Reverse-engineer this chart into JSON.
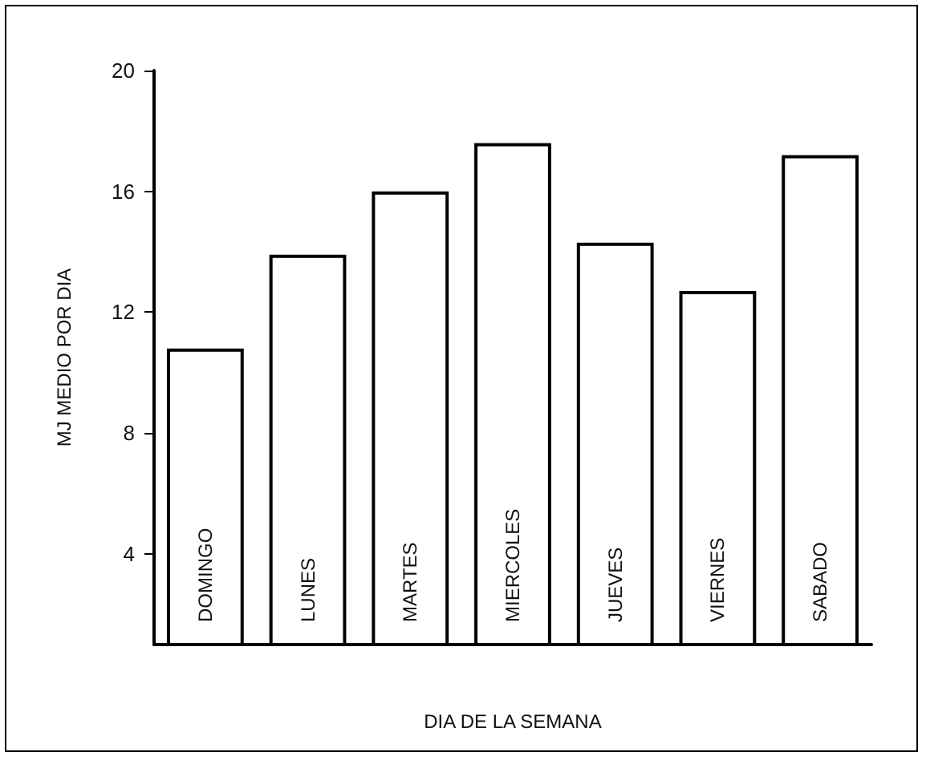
{
  "chart_data": {
    "type": "bar",
    "xlabel": "DIA DE LA SEMANA",
    "ylabel": "MJ MEDIO POR DIA",
    "categories": [
      "DOMINGO",
      "LUNES",
      "MARTES",
      "MIERCOLES",
      "JUEVES",
      "VIERNES",
      "SABADO"
    ],
    "values": [
      10.8,
      13.9,
      16.0,
      17.6,
      14.3,
      12.7,
      17.2
    ],
    "color": "#ffffff",
    "ylim": [
      1,
      20
    ],
    "yticks": [
      4,
      8,
      12,
      16,
      20
    ],
    "grid": false
  }
}
